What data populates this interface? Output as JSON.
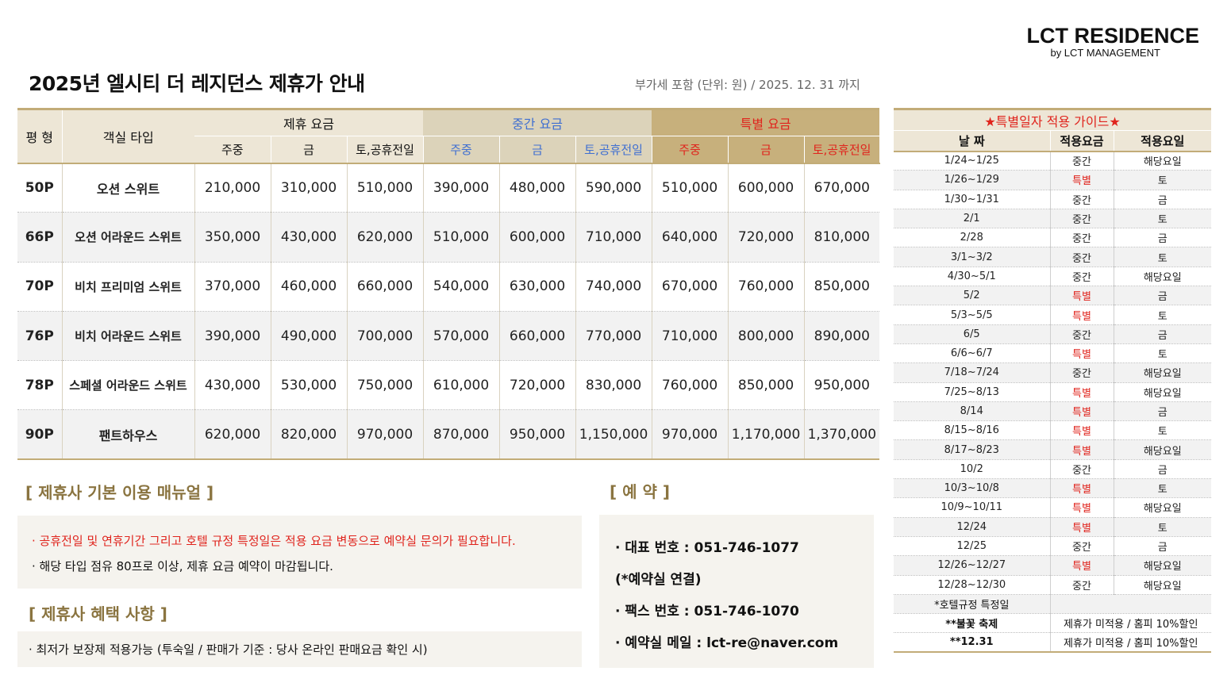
{
  "brand": {
    "name": "LCT RESIDENCE",
    "sub": "by LCT MANAGEMENT"
  },
  "title": "2025년 엘시티 더 레지던스 제휴가 안내",
  "vat_note": "부가세 포함 (단위: 원) / 2025. 12. 31 까지",
  "rate_table": {
    "col_size": "평 형",
    "col_type": "객실 타입",
    "groups": {
      "partner": "제휴 요금",
      "mid": "중간 요금",
      "special": "특별 요금"
    },
    "sub_headers": [
      "주중",
      "금",
      "토,공휴전일"
    ],
    "rows": [
      {
        "size": "50P",
        "type": "오션 스위트",
        "rates": [
          "210,000",
          "310,000",
          "510,000",
          "390,000",
          "480,000",
          "590,000",
          "510,000",
          "600,000",
          "670,000"
        ]
      },
      {
        "size": "66P",
        "type": "오션 어라운드 스위트",
        "rates": [
          "350,000",
          "430,000",
          "620,000",
          "510,000",
          "600,000",
          "710,000",
          "640,000",
          "720,000",
          "810,000"
        ]
      },
      {
        "size": "70P",
        "type": "비치 프리미엄 스위트",
        "rates": [
          "370,000",
          "460,000",
          "660,000",
          "540,000",
          "630,000",
          "740,000",
          "670,000",
          "760,000",
          "850,000"
        ]
      },
      {
        "size": "76P",
        "type": "비치 어라운드 스위트",
        "rates": [
          "390,000",
          "490,000",
          "700,000",
          "570,000",
          "660,000",
          "770,000",
          "710,000",
          "800,000",
          "890,000"
        ]
      },
      {
        "size": "78P",
        "type": "스페셜 어라운드 스위트",
        "rates": [
          "430,000",
          "530,000",
          "750,000",
          "610,000",
          "720,000",
          "830,000",
          "760,000",
          "850,000",
          "950,000"
        ]
      },
      {
        "size": "90P",
        "type": "팬트하우스",
        "rates": [
          "620,000",
          "820,000",
          "970,000",
          "870,000",
          "950,000",
          "1,150,000",
          "970,000",
          "1,170,000",
          "1,370,000"
        ]
      }
    ]
  },
  "manual": {
    "title": "[ 제휴사 기본 이용 매뉴얼 ]",
    "lines": [
      "· 공휴전일 및 연휴기간 그리고 호텔 규정 특정일은 적용 요금 변동으로 예약실 문의가 필요합니다.",
      "· 해당 타입 점유 80프로 이상, 제휴 요금 예약이 마감됩니다."
    ]
  },
  "benefit": {
    "title": "[ 제휴사 혜택 사항 ]",
    "line": "· 최저가 보장제 적용가능 (투숙일 / 판매가 기준 : 당사 온라인  판매요금 확인 시)"
  },
  "reservation": {
    "title": "[ 예 약 ]",
    "lines": [
      "· 대표 번호 : 051-746-1077",
      "(*예약실 연결)",
      "· 팩스 번호 : 051-746-1070",
      "· 예약실 메일 : lct-re@naver.com"
    ]
  },
  "guide": {
    "title": "★특별일자 적용 가이드★",
    "headers": [
      "날 짜",
      "적용요금",
      "적용요일"
    ],
    "rows": [
      {
        "date": "1/24~1/25",
        "rate": "중간",
        "day": "해당요일",
        "special": false
      },
      {
        "date": "1/26~1/29",
        "rate": "특별",
        "day": "토",
        "special": true
      },
      {
        "date": "1/30~1/31",
        "rate": "중간",
        "day": "금",
        "special": false
      },
      {
        "date": "2/1",
        "rate": "중간",
        "day": "토",
        "special": false
      },
      {
        "date": "2/28",
        "rate": "중간",
        "day": "금",
        "special": false
      },
      {
        "date": "3/1~3/2",
        "rate": "중간",
        "day": "토",
        "special": false
      },
      {
        "date": "4/30~5/1",
        "rate": "중간",
        "day": "해당요일",
        "special": false
      },
      {
        "date": "5/2",
        "rate": "특별",
        "day": "금",
        "special": true
      },
      {
        "date": "5/3~5/5",
        "rate": "특별",
        "day": "토",
        "special": true
      },
      {
        "date": "6/5",
        "rate": "중간",
        "day": "금",
        "special": false
      },
      {
        "date": "6/6~6/7",
        "rate": "특별",
        "day": "토",
        "special": true
      },
      {
        "date": "7/18~7/24",
        "rate": "중간",
        "day": "해당요일",
        "special": false
      },
      {
        "date": "7/25~8/13",
        "rate": "특별",
        "day": "해당요일",
        "special": true
      },
      {
        "date": "8/14",
        "rate": "특별",
        "day": "금",
        "special": true
      },
      {
        "date": "8/15~8/16",
        "rate": "특별",
        "day": "토",
        "special": true
      },
      {
        "date": "8/17~8/23",
        "rate": "특별",
        "day": "해당요일",
        "special": true
      },
      {
        "date": "10/2",
        "rate": "중간",
        "day": "금",
        "special": false
      },
      {
        "date": "10/3~10/8",
        "rate": "특별",
        "day": "토",
        "special": true
      },
      {
        "date": "10/9~10/11",
        "rate": "특별",
        "day": "해당요일",
        "special": true
      },
      {
        "date": "12/24",
        "rate": "특별",
        "day": "토",
        "special": true
      },
      {
        "date": "12/25",
        "rate": "중간",
        "day": "금",
        "special": false
      },
      {
        "date": "12/26~12/27",
        "rate": "특별",
        "day": "해당요일",
        "special": true
      },
      {
        "date": "12/28~12/30",
        "rate": "중간",
        "day": "해당요일",
        "special": false
      }
    ],
    "footer": [
      {
        "label": "*호텔규정 특정일",
        "note": ""
      },
      {
        "label": "**불꽃 축제",
        "note": "제휴가 미적용 / 홈피 10%할인"
      },
      {
        "label": "**12.31",
        "note": "제휴가 미적용 / 홈피 10%할인"
      }
    ]
  },
  "colors": {
    "accent_gold": "#c2ac78",
    "red": "#e0241d",
    "blue": "#3f6fd1",
    "section_title": "#8a7440"
  }
}
